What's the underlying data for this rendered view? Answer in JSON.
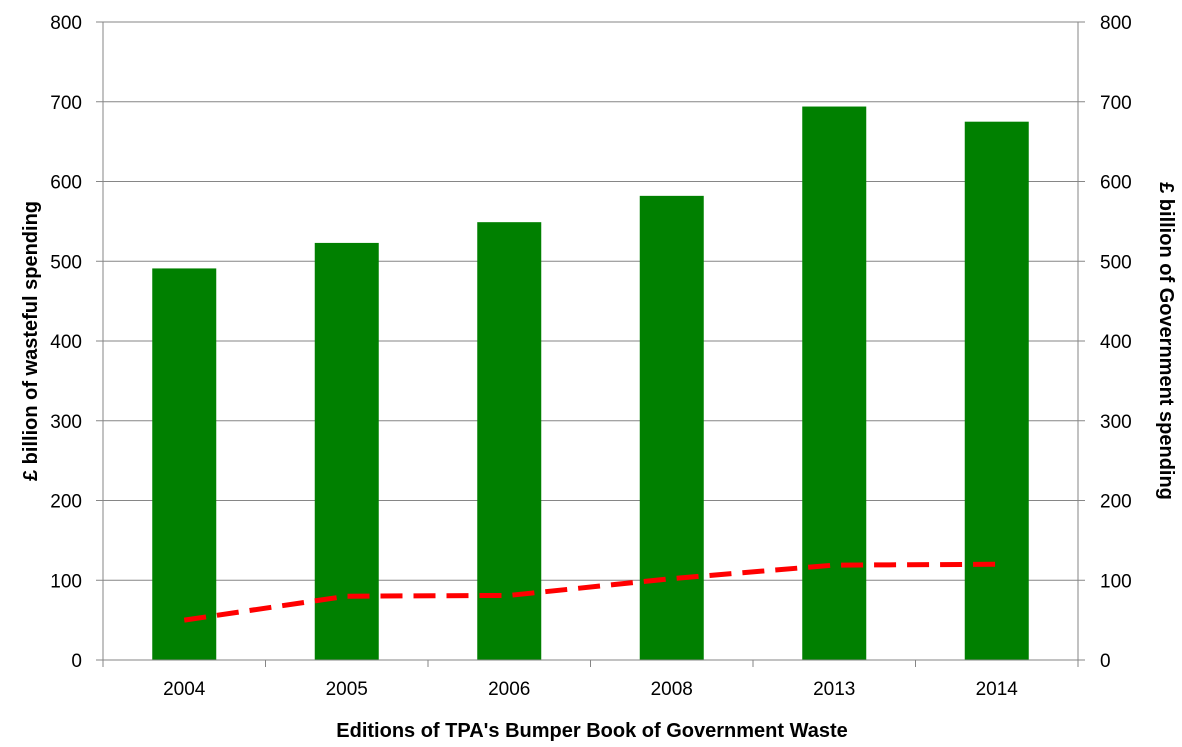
{
  "chart_data": {
    "type": "bar",
    "categories": [
      "2004",
      "2005",
      "2006",
      "2008",
      "2013",
      "2014"
    ],
    "series": [
      {
        "type": "bar",
        "axis": "left",
        "color": "#008000",
        "values": [
          491,
          523,
          549,
          582,
          694,
          675
        ]
      },
      {
        "type": "line",
        "axis": "right",
        "style": "dashed",
        "color": "#ff0000",
        "values": [
          50,
          80,
          81,
          102,
          119,
          120
        ]
      }
    ],
    "xlabel": "Editions of TPA's Bumper Book of Government Waste",
    "ylabel": "£ billion of wasteful spending",
    "y2label": "£ billion of Government spending",
    "ylim": [
      0,
      800
    ],
    "y2lim": [
      0,
      800
    ],
    "yticks": [
      0,
      100,
      200,
      300,
      400,
      500,
      600,
      700,
      800
    ],
    "y2ticks": [
      0,
      100,
      200,
      300,
      400,
      500,
      600,
      700,
      800
    ],
    "grid": true,
    "legend": "none",
    "colors": {
      "axis": "#868686",
      "grid": "#868686"
    }
  }
}
